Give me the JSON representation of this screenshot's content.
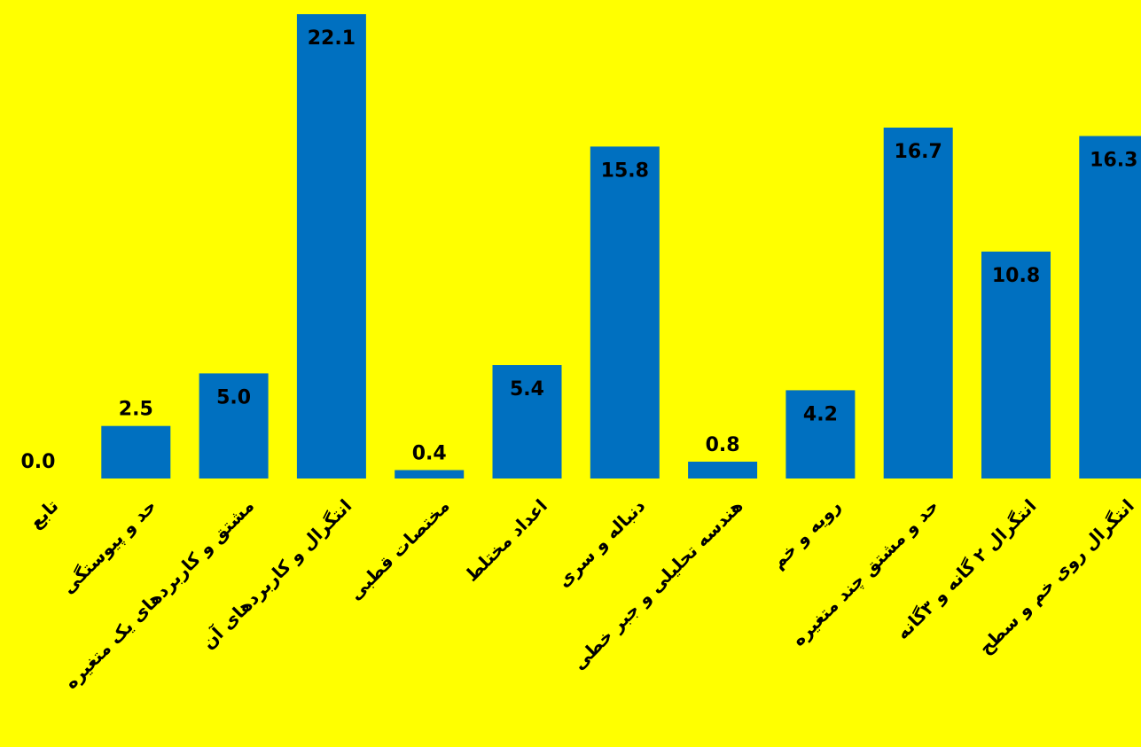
{
  "chart_data": {
    "type": "bar",
    "categories": [
      "تابع",
      "حد و پیوستگی",
      "مشتق و کاربردهای یک متغیره",
      "انتگرال و کاربردهای آن",
      "مختصات قطبی",
      "اعداد مختلط",
      "دنباله و سری",
      "هندسه تحلیلی و جبر خطی",
      "رویه و خم",
      "حد و مشتق چند متغیره",
      "انتگرال ۲ گانه و ۳گانه",
      "انتگرال روی خم و سطح"
    ],
    "values": [
      0.0,
      2.5,
      5.0,
      22.1,
      0.4,
      5.4,
      15.8,
      0.8,
      4.2,
      16.7,
      10.8,
      16.3
    ],
    "value_labels": [
      "0.0",
      "2.5",
      "5.0",
      "22.1",
      "0.4",
      "5.4",
      "15.8",
      "0.8",
      "4.2",
      "16.7",
      "10.8",
      "16.3"
    ],
    "ylim": [
      0,
      22.1
    ],
    "title": "",
    "xlabel": "",
    "ylabel": "",
    "grid": false,
    "legend": "none",
    "colors": {
      "bar": "#0070C0",
      "background": "#FFFF00",
      "text": "#000000"
    }
  }
}
